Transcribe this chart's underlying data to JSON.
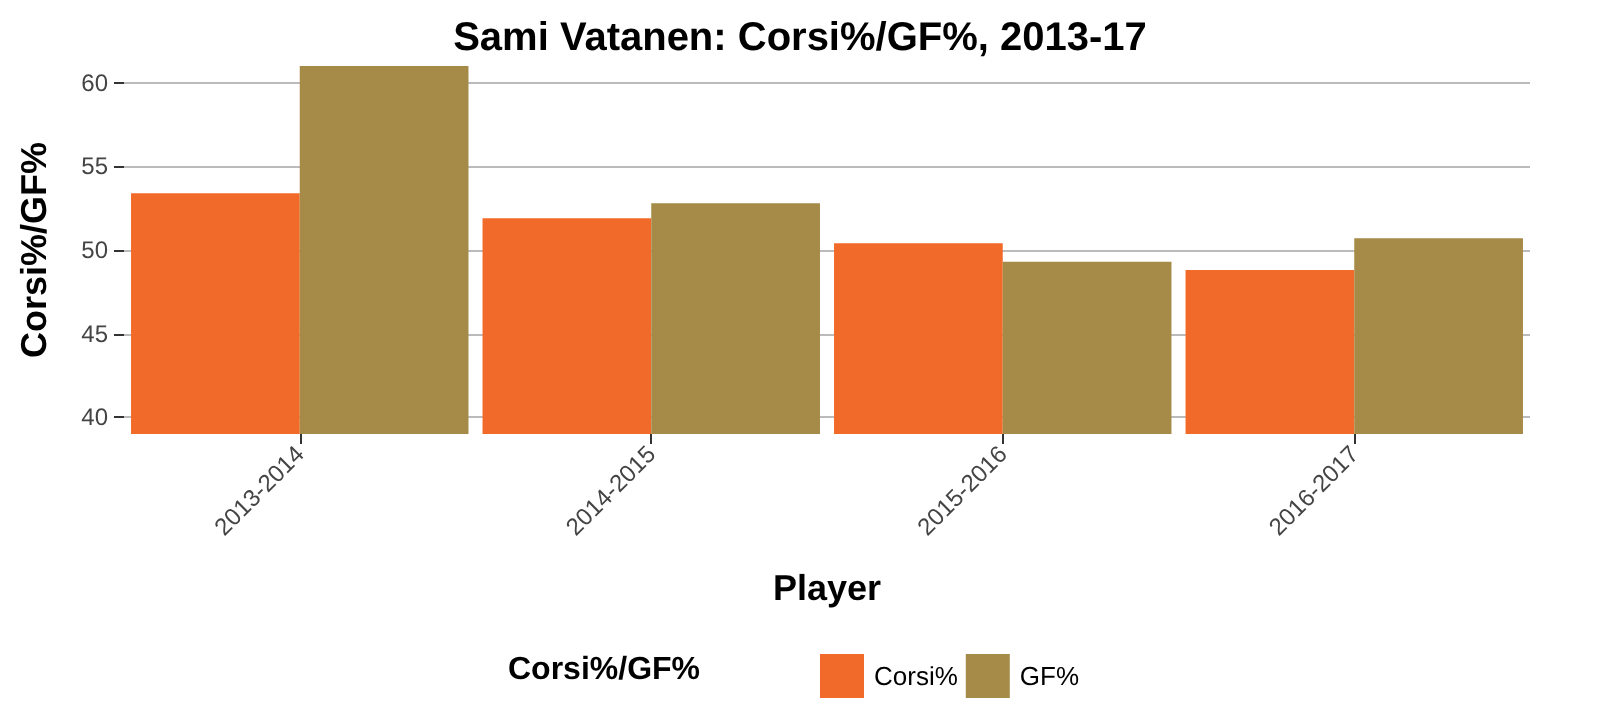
{
  "chart_data": {
    "type": "bar",
    "title": "Sami Vatanen: Corsi%/GF%, 2013-17",
    "xlabel": "Player",
    "ylabel": "Corsi%/GF%",
    "legend_title": "Corsi%/GF%",
    "categories": [
      "2013-2014",
      "2014-2015",
      "2015-2016",
      "2016-2017"
    ],
    "series": [
      {
        "name": "Corsi%",
        "color": "#f26a2a",
        "values": [
          53.4,
          51.9,
          50.4,
          48.8
        ]
      },
      {
        "name": "GF%",
        "color": "#a68a47",
        "values": [
          61.0,
          52.8,
          49.3,
          50.7
        ]
      }
    ],
    "ylim": [
      39,
      61
    ],
    "yticks": [
      40,
      45,
      50,
      55,
      60
    ],
    "grid": "y",
    "legend": "bottom"
  }
}
